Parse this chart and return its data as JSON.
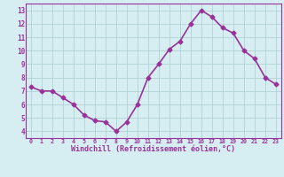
{
  "x": [
    0,
    1,
    2,
    3,
    4,
    5,
    6,
    7,
    8,
    9,
    10,
    11,
    12,
    13,
    14,
    15,
    16,
    17,
    18,
    19,
    20,
    21,
    22,
    23
  ],
  "y": [
    7.3,
    7.0,
    7.0,
    6.5,
    6.0,
    5.2,
    4.8,
    4.7,
    4.0,
    4.7,
    6.0,
    8.0,
    9.0,
    10.1,
    10.7,
    12.0,
    13.0,
    12.5,
    11.7,
    11.3,
    10.0,
    9.4,
    8.0,
    7.5
  ],
  "line_color": "#993399",
  "marker": "D",
  "marker_size": 2.5,
  "bg_color": "#d6eef2",
  "grid_color": "#aacccc",
  "xlabel": "Windchill (Refroidissement éolien,°C)",
  "xlabel_color": "#993399",
  "tick_color": "#993399",
  "ylim": [
    3.5,
    13.5
  ],
  "xlim": [
    -0.5,
    23.5
  ],
  "yticks": [
    4,
    5,
    6,
    7,
    8,
    9,
    10,
    11,
    12,
    13
  ],
  "xticks": [
    0,
    1,
    2,
    3,
    4,
    5,
    6,
    7,
    8,
    9,
    10,
    11,
    12,
    13,
    14,
    15,
    16,
    17,
    18,
    19,
    20,
    21,
    22,
    23
  ],
  "xtick_labels": [
    "0",
    "1",
    "2",
    "3",
    "4",
    "5",
    "6",
    "7",
    "8",
    "9",
    "10",
    "11",
    "12",
    "13",
    "14",
    "15",
    "16",
    "17",
    "18",
    "19",
    "20",
    "21",
    "22",
    "23"
  ],
  "ytick_labels": [
    "4",
    "5",
    "6",
    "7",
    "8",
    "9",
    "10",
    "11",
    "12",
    "13"
  ],
  "spine_color": "#993399",
  "line_width": 1.2
}
